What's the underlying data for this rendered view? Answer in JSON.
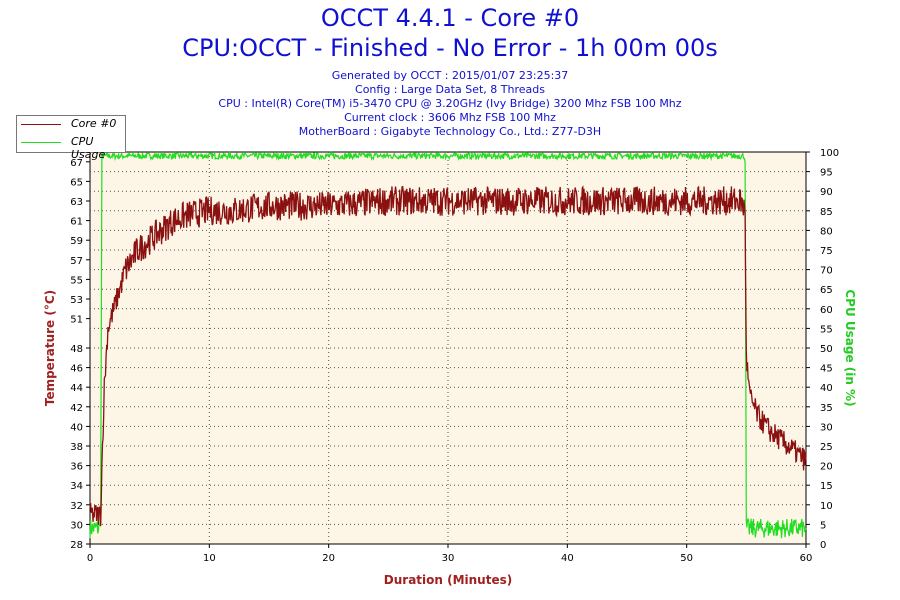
{
  "header": {
    "title": "OCCT 4.4.1 - Core #0",
    "subtitle": "CPU:OCCT - Finished - No Error - 1h 00m 00s",
    "info_lines": [
      "Generated by OCCT : 2015/01/07 23:25:37",
      "Config : Large Data Set, 8 Threads",
      "CPU : Intel(R) Core(TM) i5-3470 CPU @ 3.20GHz (Ivy Bridge) 3200 Mhz FSB 100 Mhz",
      "Current clock : 3606 Mhz FSB 100 Mhz",
      "MotherBoard : Gigabyte Technology Co., Ltd.: Z77-D3H"
    ]
  },
  "legend": {
    "items": [
      {
        "label": "Core #0",
        "color": "#8b1010"
      },
      {
        "label": "CPU Usage",
        "color": "#22dd22"
      }
    ]
  },
  "colors": {
    "title": "#1010d0",
    "temperature": "#8b1010",
    "usage": "#22dd22",
    "plot_background": "#fdf5e6",
    "axis_left_label": "#a02020",
    "axis_right_label": "#22cc22"
  },
  "chart_data": {
    "type": "line",
    "xlabel": "Duration (Minutes)",
    "ylabel_left": "Temperature (°C)",
    "ylabel_right": "CPU Usage (in %)",
    "xlim": [
      0,
      60
    ],
    "ylim_left": [
      28,
      68
    ],
    "ylim_right": [
      0,
      100
    ],
    "x_ticks": [
      0,
      10,
      20,
      30,
      40,
      50,
      60
    ],
    "y_left_ticks": [
      28,
      30,
      32,
      34,
      36,
      38,
      40,
      42,
      44,
      46,
      48,
      51,
      53,
      55,
      57,
      59,
      61,
      63,
      65,
      67
    ],
    "y_right_ticks": [
      0,
      5,
      10,
      15,
      20,
      25,
      30,
      35,
      40,
      45,
      50,
      55,
      60,
      65,
      70,
      75,
      80,
      85,
      90,
      95,
      100
    ],
    "grid": true,
    "legend_position": "top-left",
    "series": [
      {
        "name": "Core #0",
        "axis": "left",
        "x": [
          0,
          0.5,
          0.9,
          1.0,
          1.2,
          1.5,
          2.0,
          2.5,
          3.0,
          3.5,
          4.0,
          5.0,
          6.0,
          7.0,
          8.0,
          10.0,
          12.0,
          15.0,
          20.0,
          25.0,
          30.0,
          35.0,
          40.0,
          45.0,
          50.0,
          54.0,
          54.5,
          54.9,
          55.0,
          55.3,
          56.0,
          57.0,
          58.0,
          59.0,
          60.0
        ],
        "values": [
          31,
          31,
          31,
          36,
          44,
          50,
          52,
          54,
          56,
          57,
          58,
          59,
          60,
          61,
          61.5,
          62,
          62,
          62.5,
          62.5,
          63,
          63,
          63,
          63,
          63,
          63,
          63,
          63,
          62,
          47,
          43,
          41,
          39.5,
          38.5,
          37.5,
          36.5
        ]
      },
      {
        "name": "CPU Usage",
        "axis": "right",
        "x": [
          0,
          0.8,
          0.9,
          1.0,
          5.0,
          10.0,
          20.0,
          30.0,
          40.0,
          50.0,
          54.8,
          54.9,
          55.0,
          55.5,
          58.0,
          60.0
        ],
        "values": [
          4,
          4,
          10,
          99,
          99,
          99,
          99,
          99,
          99,
          99,
          99,
          98,
          4,
          4,
          4,
          4
        ]
      }
    ]
  }
}
